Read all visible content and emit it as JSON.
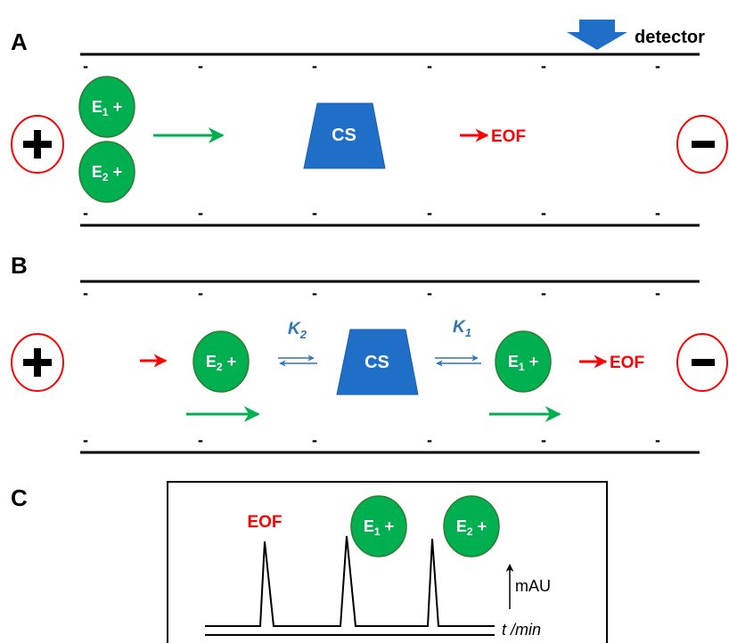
{
  "panels": {
    "a": {
      "letter": "A"
    },
    "b": {
      "letter": "B"
    },
    "c": {
      "letter": "C"
    }
  },
  "detector": {
    "label": "detector"
  },
  "wall_charge": "-",
  "electrodes": {
    "positive": "+",
    "negative": "-"
  },
  "ions": {
    "e1": {
      "main": "E",
      "sub": "1",
      "charge": " +"
    },
    "e2": {
      "main": "E",
      "sub": "2",
      "charge": " +"
    }
  },
  "selector": {
    "label": "CS"
  },
  "eof": {
    "label": "EOF"
  },
  "constants": {
    "k1": {
      "main": "K",
      "sub": "1"
    },
    "k2": {
      "main": "K",
      "sub": "2"
    }
  },
  "electropherogram": {
    "peak_label": "EOF",
    "y_axis_label": "mAU",
    "x_axis_label": "t /min"
  },
  "colors": {
    "ion_fill": "#00b050",
    "ion_stroke": "#2e7d32",
    "selector_fill": "#1f6fc9",
    "flow_arrow": "#ff0000",
    "migration_arrow": "#00b050",
    "equilibrium_arrow": "#2e75b6",
    "electrode_ring": "#ff0000"
  }
}
